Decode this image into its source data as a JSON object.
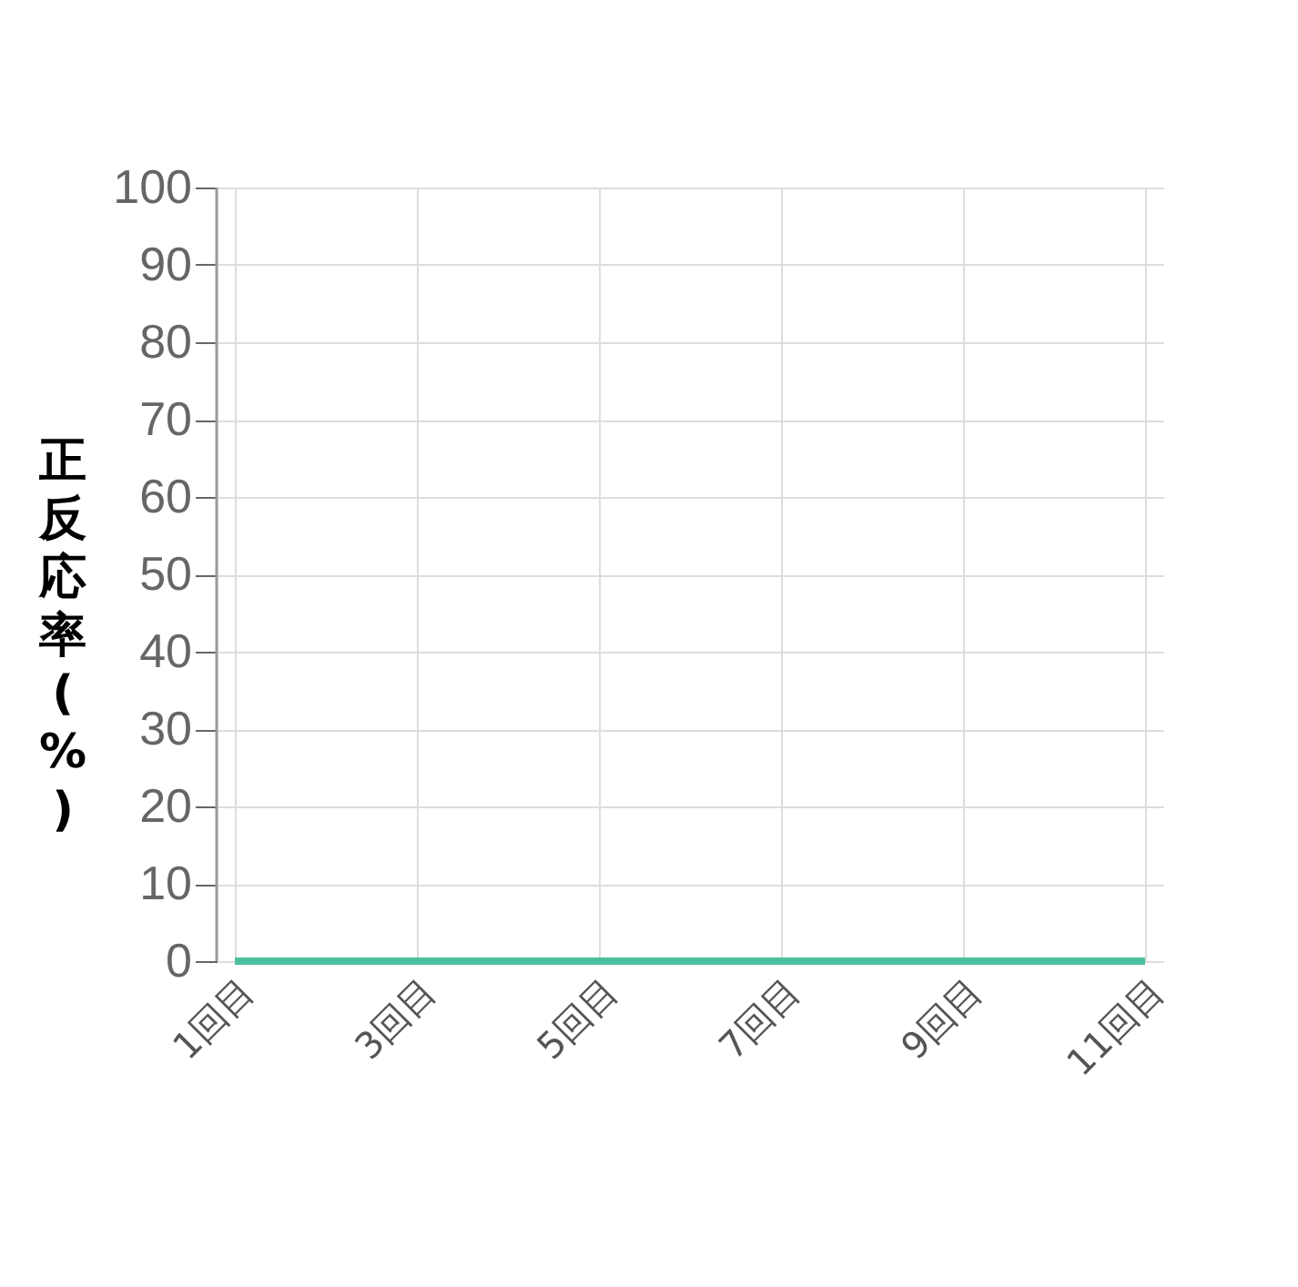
{
  "chart_data": {
    "type": "line",
    "ylabel": "正反応率(%)",
    "categories": [
      "1回目",
      "3回目",
      "5回目",
      "7回目",
      "9回目",
      "11回目"
    ],
    "series": [
      {
        "color": "#4dbf9f",
        "values": [
          0,
          0,
          0,
          0,
          0,
          0
        ]
      }
    ],
    "ylim": [
      0,
      100
    ],
    "yticks": [
      0,
      10,
      20,
      30,
      40,
      50,
      60,
      70,
      80,
      90,
      100
    ],
    "grid": true,
    "marker": "none"
  }
}
